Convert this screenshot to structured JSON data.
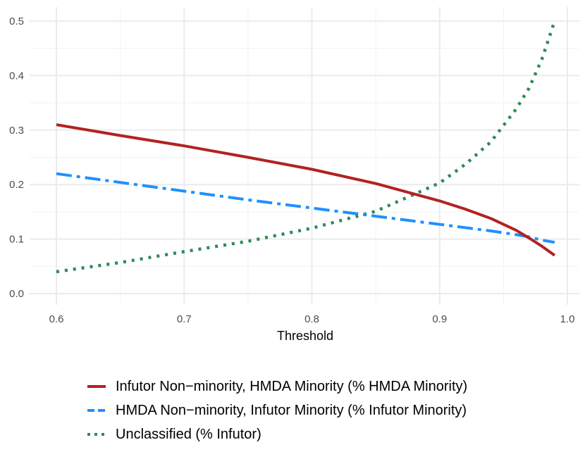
{
  "chart_data": {
    "type": "line",
    "title": "",
    "xlabel": "Threshold",
    "ylabel": "",
    "xlim": [
      0.6,
      1.0
    ],
    "ylim": [
      0.0,
      0.5
    ],
    "x_ticks": [
      "0.6",
      "0.7",
      "0.8",
      "0.9",
      "1.0"
    ],
    "y_ticks": [
      "0.0",
      "0.1",
      "0.2",
      "0.3",
      "0.4",
      "0.5"
    ],
    "grid": true,
    "legend_position": "bottom",
    "x": [
      0.6,
      0.65,
      0.7,
      0.75,
      0.8,
      0.85,
      0.9,
      0.92,
      0.94,
      0.96,
      0.97,
      0.98,
      0.99
    ],
    "series": [
      {
        "name": "Infutor Non−minority, HMDA Minority (% HMDA Minority)",
        "color": "#B22222",
        "line_style": "solid",
        "values": [
          0.31,
          0.29,
          0.271,
          0.25,
          0.228,
          0.202,
          0.17,
          0.155,
          0.138,
          0.116,
          0.102,
          0.087,
          0.07
        ]
      },
      {
        "name": "HMDA Non−minority, Infutor Minority (% Infutor Minority)",
        "color": "#1E90FF",
        "line_style": "dashdot",
        "values": [
          0.22,
          0.204,
          0.188,
          0.172,
          0.157,
          0.142,
          0.127,
          0.121,
          0.115,
          0.108,
          0.104,
          0.098,
          0.094
        ]
      },
      {
        "name": "Unclassified (% Infutor)",
        "color": "#2E8B57",
        "line_style": "dotted",
        "values": [
          0.04,
          0.057,
          0.077,
          0.096,
          0.12,
          0.151,
          0.203,
          0.237,
          0.278,
          0.339,
          0.377,
          0.43,
          0.5
        ]
      }
    ]
  }
}
